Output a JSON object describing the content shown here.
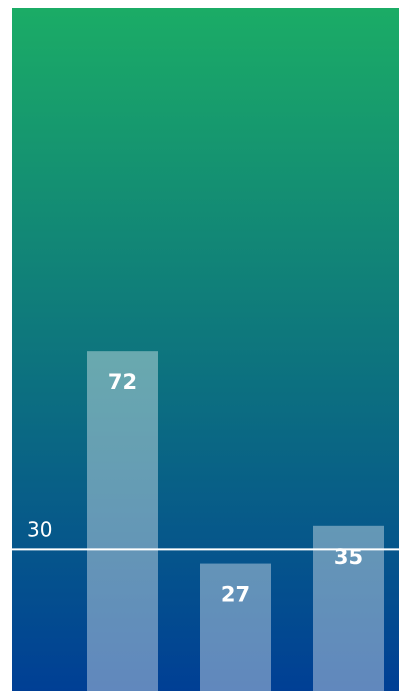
{
  "chart_data": {
    "type": "bar",
    "categories": [
      "",
      "",
      ""
    ],
    "values": [
      72,
      27,
      35
    ],
    "ylim": [
      0,
      125
    ],
    "reference_line": {
      "value": 30,
      "label": "30"
    },
    "grid": false,
    "legend": "none"
  },
  "colors": {
    "background_top": "#1bac66",
    "background_bottom": "#003f95",
    "bar_fill": "#ffffff",
    "bar_opacity": 0.38,
    "bar_label": "#ffffff",
    "reference_line": "#ffffff"
  }
}
